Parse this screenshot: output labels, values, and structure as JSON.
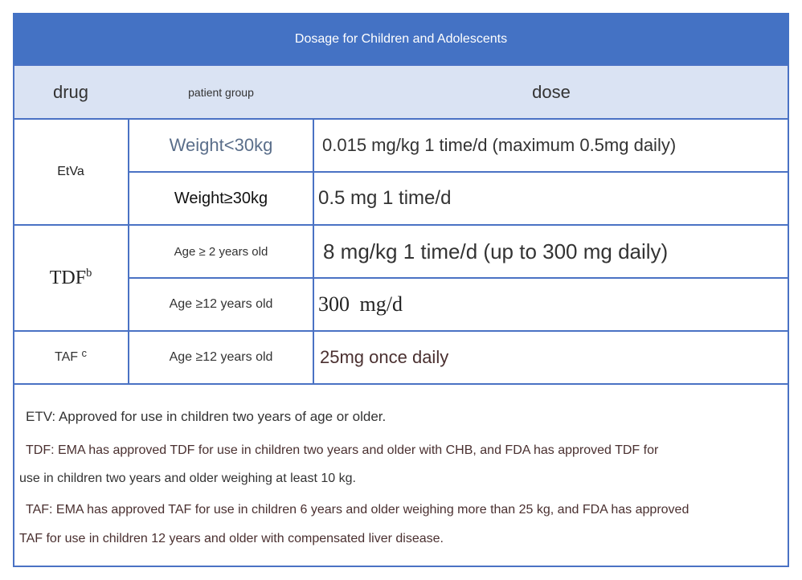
{
  "title": "Dosage for Children and Adolescents",
  "header": [
    "drug",
    "patient group",
    "dose"
  ],
  "groups": [
    {
      "drug": "EtVa",
      "rows": [
        {
          "group": "Weight<30kg",
          "dose": "0.015 mg/kg 1 time/d (maximum 0.5mg daily)"
        },
        {
          "group": "Weight≥30kg",
          "dose": "0.5 mg 1 time/d"
        }
      ]
    },
    {
      "drug": "TDF",
      "sup": "b",
      "rows": [
        {
          "group": "Age ≥ 2 years old",
          "dose": "8 mg/kg 1 time/d (up to 300 mg daily)"
        },
        {
          "group": "Age ≥12 years old",
          "dose": "300 mg/d"
        }
      ]
    },
    {
      "drug": "TAF",
      "sup": "c",
      "rows": [
        {
          "group": "Age ≥12 years old",
          "dose": "25mg once daily"
        }
      ]
    }
  ],
  "notes": [
    [
      "ETV: Approved for use in children two years of age or older."
    ],
    [
      "TDF: EMA has approved TDF for use in children two years and older with CHB, and FDA has approved TDF for",
      "use in children two years and older weighing at least 10 kg."
    ],
    [
      "TAF: EMA has approved TAF for use in children 6 years and older weighing more than 25 kg, and FDA has approved",
      "TAF for use in children 12 years and older with compensated liver disease."
    ]
  ]
}
